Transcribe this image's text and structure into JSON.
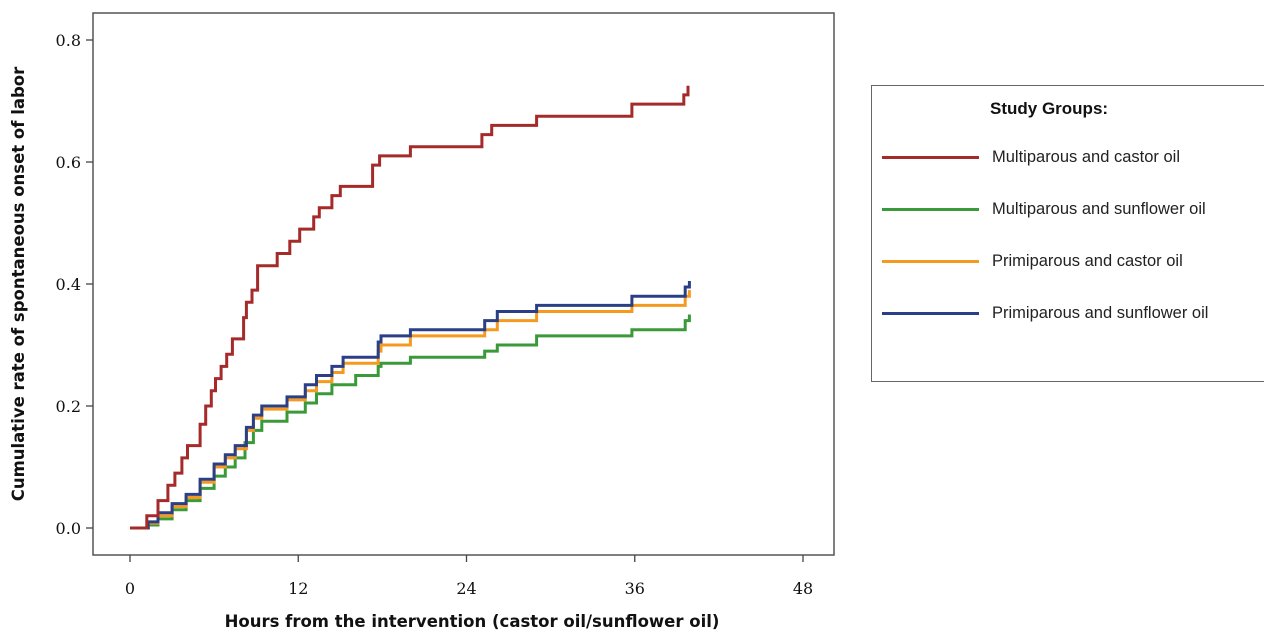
{
  "chart_data": {
    "type": "line",
    "step": true,
    "xlabel": "Hours from the intervention (castor oil/sunflower oil)",
    "ylabel": "Cumulative rate of spontaneous onset of labor",
    "xlim": [
      0,
      48
    ],
    "ylim": [
      0,
      0.8
    ],
    "x_ticks": [
      "0",
      "12",
      "24",
      "36",
      "48"
    ],
    "y_ticks": [
      "0.0",
      "0.2",
      "0.4",
      "0.6",
      "0.8"
    ],
    "grid": false,
    "legend_position": "right",
    "legend_title": "Study Groups:",
    "series": [
      {
        "name": "Multiparous and castor oil",
        "color": "#a52a2a",
        "points": [
          [
            0,
            0
          ],
          [
            1.2,
            0
          ],
          [
            1.2,
            0.02
          ],
          [
            2,
            0.02
          ],
          [
            2,
            0.045
          ],
          [
            2.7,
            0.045
          ],
          [
            2.7,
            0.07
          ],
          [
            3.2,
            0.07
          ],
          [
            3.2,
            0.09
          ],
          [
            3.7,
            0.09
          ],
          [
            3.7,
            0.115
          ],
          [
            4.1,
            0.115
          ],
          [
            4.1,
            0.135
          ],
          [
            5.0,
            0.135
          ],
          [
            5.0,
            0.17
          ],
          [
            5.4,
            0.17
          ],
          [
            5.4,
            0.2
          ],
          [
            5.8,
            0.2
          ],
          [
            5.8,
            0.225
          ],
          [
            6.1,
            0.225
          ],
          [
            6.1,
            0.245
          ],
          [
            6.5,
            0.245
          ],
          [
            6.5,
            0.265
          ],
          [
            6.9,
            0.265
          ],
          [
            6.9,
            0.285
          ],
          [
            7.3,
            0.285
          ],
          [
            7.3,
            0.31
          ],
          [
            8.1,
            0.31
          ],
          [
            8.1,
            0.345
          ],
          [
            8.3,
            0.345
          ],
          [
            8.3,
            0.37
          ],
          [
            8.7,
            0.37
          ],
          [
            8.7,
            0.39
          ],
          [
            9.1,
            0.39
          ],
          [
            9.1,
            0.43
          ],
          [
            10.5,
            0.43
          ],
          [
            10.5,
            0.45
          ],
          [
            11.4,
            0.45
          ],
          [
            11.4,
            0.47
          ],
          [
            12.1,
            0.47
          ],
          [
            12.1,
            0.49
          ],
          [
            13.1,
            0.49
          ],
          [
            13.1,
            0.51
          ],
          [
            13.5,
            0.51
          ],
          [
            13.5,
            0.525
          ],
          [
            14.4,
            0.525
          ],
          [
            14.4,
            0.545
          ],
          [
            15.0,
            0.545
          ],
          [
            15.0,
            0.56
          ],
          [
            17.3,
            0.56
          ],
          [
            17.3,
            0.595
          ],
          [
            17.8,
            0.595
          ],
          [
            17.8,
            0.61
          ],
          [
            20.0,
            0.61
          ],
          [
            20.0,
            0.625
          ],
          [
            25.1,
            0.625
          ],
          [
            25.1,
            0.645
          ],
          [
            25.8,
            0.645
          ],
          [
            25.8,
            0.66
          ],
          [
            29.0,
            0.66
          ],
          [
            29.0,
            0.675
          ],
          [
            35.8,
            0.675
          ],
          [
            35.8,
            0.695
          ],
          [
            39.5,
            0.695
          ],
          [
            39.5,
            0.71
          ],
          [
            39.8,
            0.71
          ],
          [
            39.8,
            0.725
          ]
        ]
      },
      {
        "name": "Multiparous and sunflower oil",
        "color": "#3a9a3a",
        "points": [
          [
            0,
            0
          ],
          [
            1.3,
            0
          ],
          [
            1.3,
            0.005
          ],
          [
            2,
            0.005
          ],
          [
            2,
            0.015
          ],
          [
            3,
            0.015
          ],
          [
            3,
            0.03
          ],
          [
            4,
            0.03
          ],
          [
            4,
            0.045
          ],
          [
            5,
            0.045
          ],
          [
            5,
            0.065
          ],
          [
            6,
            0.065
          ],
          [
            6,
            0.085
          ],
          [
            6.8,
            0.085
          ],
          [
            6.8,
            0.1
          ],
          [
            7.5,
            0.1
          ],
          [
            7.5,
            0.115
          ],
          [
            8.2,
            0.115
          ],
          [
            8.2,
            0.14
          ],
          [
            8.8,
            0.14
          ],
          [
            8.8,
            0.16
          ],
          [
            9.4,
            0.16
          ],
          [
            9.4,
            0.175
          ],
          [
            11.2,
            0.175
          ],
          [
            11.2,
            0.19
          ],
          [
            12.5,
            0.19
          ],
          [
            12.5,
            0.205
          ],
          [
            13.3,
            0.205
          ],
          [
            13.3,
            0.22
          ],
          [
            14.4,
            0.22
          ],
          [
            14.4,
            0.235
          ],
          [
            16.1,
            0.235
          ],
          [
            16.1,
            0.25
          ],
          [
            17.7,
            0.25
          ],
          [
            17.7,
            0.265
          ],
          [
            17.9,
            0.265
          ],
          [
            17.9,
            0.27
          ],
          [
            20.0,
            0.27
          ],
          [
            20.0,
            0.28
          ],
          [
            25.3,
            0.28
          ],
          [
            25.3,
            0.29
          ],
          [
            26.2,
            0.29
          ],
          [
            26.2,
            0.3
          ],
          [
            29.0,
            0.3
          ],
          [
            29.0,
            0.315
          ],
          [
            35.8,
            0.315
          ],
          [
            35.8,
            0.325
          ],
          [
            39.6,
            0.325
          ],
          [
            39.6,
            0.34
          ],
          [
            39.9,
            0.34
          ],
          [
            39.9,
            0.35
          ]
        ]
      },
      {
        "name": "Primiparous and castor oil",
        "color": "#f59a1f",
        "points": [
          [
            0,
            0
          ],
          [
            1.3,
            0
          ],
          [
            1.3,
            0.008
          ],
          [
            2,
            0.008
          ],
          [
            2,
            0.02
          ],
          [
            3,
            0.02
          ],
          [
            3,
            0.035
          ],
          [
            4,
            0.035
          ],
          [
            4,
            0.05
          ],
          [
            5,
            0.05
          ],
          [
            5,
            0.075
          ],
          [
            6,
            0.075
          ],
          [
            6,
            0.1
          ],
          [
            6.8,
            0.1
          ],
          [
            6.8,
            0.115
          ],
          [
            7.5,
            0.115
          ],
          [
            7.5,
            0.13
          ],
          [
            8.3,
            0.13
          ],
          [
            8.3,
            0.16
          ],
          [
            8.8,
            0.16
          ],
          [
            8.8,
            0.18
          ],
          [
            9.4,
            0.18
          ],
          [
            9.4,
            0.195
          ],
          [
            11.2,
            0.195
          ],
          [
            11.2,
            0.21
          ],
          [
            12.5,
            0.21
          ],
          [
            12.5,
            0.225
          ],
          [
            13.3,
            0.225
          ],
          [
            13.3,
            0.24
          ],
          [
            14.4,
            0.24
          ],
          [
            14.4,
            0.255
          ],
          [
            15.2,
            0.255
          ],
          [
            15.2,
            0.27
          ],
          [
            17.7,
            0.27
          ],
          [
            17.7,
            0.29
          ],
          [
            17.9,
            0.29
          ],
          [
            17.9,
            0.3
          ],
          [
            20.0,
            0.3
          ],
          [
            20.0,
            0.315
          ],
          [
            25.3,
            0.315
          ],
          [
            25.3,
            0.325
          ],
          [
            26.2,
            0.325
          ],
          [
            26.2,
            0.34
          ],
          [
            29.0,
            0.34
          ],
          [
            29.0,
            0.355
          ],
          [
            35.8,
            0.355
          ],
          [
            35.8,
            0.365
          ],
          [
            39.6,
            0.365
          ],
          [
            39.6,
            0.38
          ],
          [
            39.9,
            0.38
          ],
          [
            39.9,
            0.39
          ]
        ]
      },
      {
        "name": "Primiparous and sunflower oil",
        "color": "#2a3f86",
        "points": [
          [
            0,
            0
          ],
          [
            1.3,
            0
          ],
          [
            1.3,
            0.01
          ],
          [
            2,
            0.01
          ],
          [
            2,
            0.025
          ],
          [
            3,
            0.025
          ],
          [
            3,
            0.04
          ],
          [
            4,
            0.04
          ],
          [
            4,
            0.055
          ],
          [
            5,
            0.055
          ],
          [
            5,
            0.08
          ],
          [
            6,
            0.08
          ],
          [
            6,
            0.105
          ],
          [
            6.8,
            0.105
          ],
          [
            6.8,
            0.12
          ],
          [
            7.5,
            0.12
          ],
          [
            7.5,
            0.135
          ],
          [
            8.3,
            0.135
          ],
          [
            8.3,
            0.165
          ],
          [
            8.8,
            0.165
          ],
          [
            8.8,
            0.185
          ],
          [
            9.4,
            0.185
          ],
          [
            9.4,
            0.2
          ],
          [
            11.2,
            0.2
          ],
          [
            11.2,
            0.215
          ],
          [
            12.5,
            0.215
          ],
          [
            12.5,
            0.235
          ],
          [
            13.3,
            0.235
          ],
          [
            13.3,
            0.25
          ],
          [
            14.4,
            0.25
          ],
          [
            14.4,
            0.265
          ],
          [
            15.2,
            0.265
          ],
          [
            15.2,
            0.28
          ],
          [
            17.7,
            0.28
          ],
          [
            17.7,
            0.305
          ],
          [
            17.9,
            0.305
          ],
          [
            17.9,
            0.315
          ],
          [
            20.0,
            0.315
          ],
          [
            20.0,
            0.325
          ],
          [
            25.3,
            0.325
          ],
          [
            25.3,
            0.34
          ],
          [
            26.2,
            0.34
          ],
          [
            26.2,
            0.355
          ],
          [
            29.0,
            0.355
          ],
          [
            29.0,
            0.365
          ],
          [
            35.8,
            0.365
          ],
          [
            35.8,
            0.38
          ],
          [
            39.6,
            0.38
          ],
          [
            39.6,
            0.395
          ],
          [
            39.9,
            0.395
          ],
          [
            39.9,
            0.405
          ]
        ]
      }
    ]
  }
}
